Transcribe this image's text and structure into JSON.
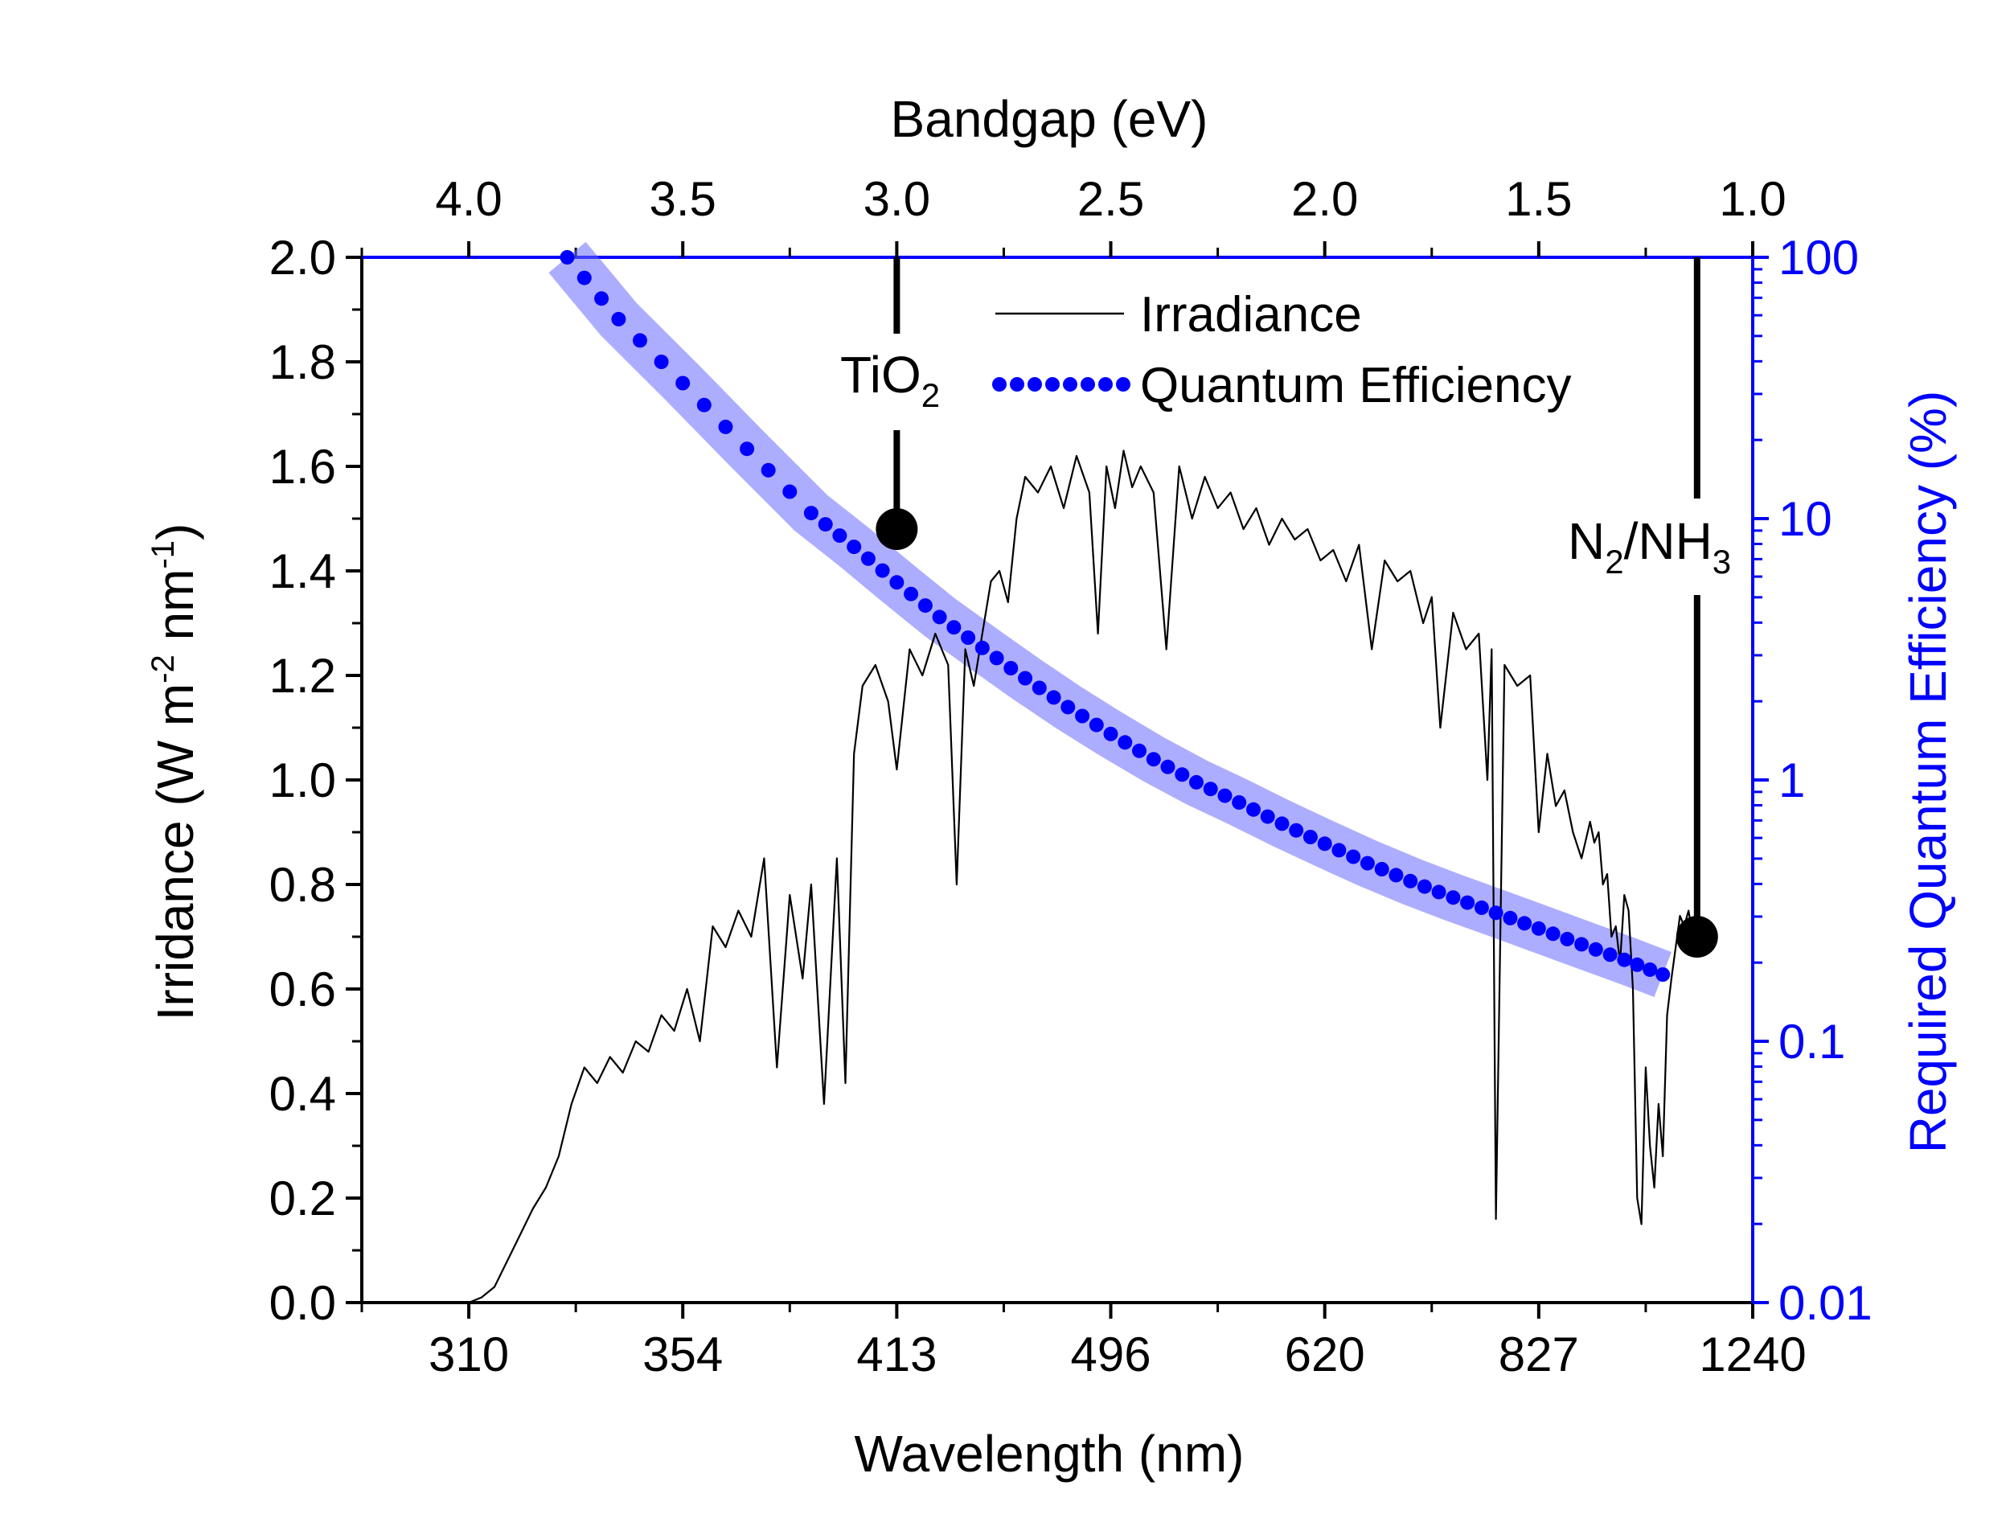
{
  "chart_data": {
    "type": "line",
    "x_axis": {
      "label": "Wavelength (nm)",
      "tick_labels": [
        "310",
        "354",
        "413",
        "496",
        "620",
        "827",
        "1240"
      ],
      "tick_ev": [
        4.0,
        3.5,
        3.0,
        2.5,
        2.0,
        1.5,
        1.0
      ],
      "range_ev": [
        4.25,
        1.0
      ]
    },
    "top_axis": {
      "label": "Bandgap (eV)",
      "tick_labels": [
        "4.0",
        "3.5",
        "3.0",
        "2.5",
        "2.0",
        "1.5",
        "1.0"
      ],
      "ticks": [
        4.0,
        3.5,
        3.0,
        2.5,
        2.0,
        1.5,
        1.0
      ]
    },
    "y_left": {
      "label": "Irridance (W m-2 nm-1)",
      "label_parts": [
        "Irridance (W m",
        "-2",
        " nm",
        "-1",
        ")"
      ],
      "range": [
        0,
        2.0
      ],
      "ticks": [
        0.0,
        0.2,
        0.4,
        0.6,
        0.8,
        1.0,
        1.2,
        1.4,
        1.6,
        1.8,
        2.0
      ],
      "tick_labels": [
        "0.0",
        "0.2",
        "0.4",
        "0.6",
        "0.8",
        "1.0",
        "1.2",
        "1.4",
        "1.6",
        "1.8",
        "2.0"
      ]
    },
    "y_right": {
      "label": "Required Quantum Efficiency (%)",
      "scale": "log",
      "range": [
        0.01,
        100
      ],
      "ticks": [
        0.01,
        0.1,
        1,
        10,
        100
      ],
      "tick_labels": [
        "0.01",
        "0.1",
        "1",
        "10",
        "100"
      ]
    },
    "series": [
      {
        "name": "Irradiance",
        "style": "thin-black-line",
        "x_ev": [
          4.0,
          3.97,
          3.94,
          3.91,
          3.88,
          3.85,
          3.82,
          3.79,
          3.76,
          3.73,
          3.7,
          3.67,
          3.64,
          3.61,
          3.58,
          3.55,
          3.52,
          3.49,
          3.46,
          3.43,
          3.4,
          3.37,
          3.34,
          3.31,
          3.28,
          3.25,
          3.22,
          3.2,
          3.17,
          3.14,
          3.12,
          3.1,
          3.08,
          3.05,
          3.02,
          3.0,
          2.97,
          2.94,
          2.91,
          2.88,
          2.86,
          2.84,
          2.82,
          2.8,
          2.78,
          2.76,
          2.74,
          2.72,
          2.7,
          2.67,
          2.64,
          2.61,
          2.58,
          2.55,
          2.53,
          2.51,
          2.49,
          2.47,
          2.45,
          2.43,
          2.4,
          2.37,
          2.34,
          2.31,
          2.28,
          2.25,
          2.22,
          2.19,
          2.16,
          2.13,
          2.1,
          2.07,
          2.04,
          2.01,
          1.98,
          1.95,
          1.92,
          1.89,
          1.86,
          1.83,
          1.8,
          1.77,
          1.75,
          1.73,
          1.7,
          1.67,
          1.64,
          1.62,
          1.61,
          1.6,
          1.58,
          1.55,
          1.52,
          1.5,
          1.48,
          1.46,
          1.44,
          1.42,
          1.4,
          1.38,
          1.37,
          1.36,
          1.35,
          1.34,
          1.33,
          1.32,
          1.31,
          1.3,
          1.29,
          1.28,
          1.27,
          1.26,
          1.25,
          1.24,
          1.23,
          1.22,
          1.21,
          1.2,
          1.19,
          1.18,
          1.17,
          1.16,
          1.15,
          1.14,
          1.13
        ],
        "y": [
          0.0,
          0.01,
          0.03,
          0.08,
          0.13,
          0.18,
          0.22,
          0.28,
          0.38,
          0.45,
          0.42,
          0.47,
          0.44,
          0.5,
          0.48,
          0.55,
          0.52,
          0.6,
          0.5,
          0.72,
          0.68,
          0.75,
          0.7,
          0.85,
          0.45,
          0.78,
          0.62,
          0.8,
          0.38,
          0.85,
          0.42,
          1.05,
          1.18,
          1.22,
          1.15,
          1.02,
          1.25,
          1.2,
          1.28,
          1.22,
          0.8,
          1.25,
          1.18,
          1.28,
          1.38,
          1.4,
          1.34,
          1.5,
          1.58,
          1.55,
          1.6,
          1.52,
          1.62,
          1.55,
          1.28,
          1.6,
          1.52,
          1.63,
          1.56,
          1.6,
          1.55,
          1.25,
          1.6,
          1.5,
          1.58,
          1.52,
          1.55,
          1.48,
          1.52,
          1.45,
          1.5,
          1.46,
          1.48,
          1.42,
          1.44,
          1.38,
          1.45,
          1.25,
          1.42,
          1.38,
          1.4,
          1.3,
          1.35,
          1.1,
          1.32,
          1.25,
          1.28,
          1.0,
          1.25,
          0.16,
          1.22,
          1.18,
          1.2,
          0.9,
          1.05,
          0.95,
          0.98,
          0.9,
          0.85,
          0.92,
          0.88,
          0.9,
          0.8,
          0.82,
          0.7,
          0.72,
          0.65,
          0.78,
          0.75,
          0.6,
          0.2,
          0.15,
          0.45,
          0.3,
          0.22,
          0.38,
          0.28,
          0.55,
          0.62,
          0.68,
          0.74,
          0.72,
          0.75,
          0.7,
          0.68
        ]
      },
      {
        "name": "Quantum Efficiency",
        "style": "blue-dotted",
        "band": true,
        "x_ev": [
          3.77,
          3.65,
          3.5,
          3.35,
          3.2,
          3.1,
          3.0,
          2.9,
          2.8,
          2.7,
          2.6,
          2.5,
          2.4,
          2.3,
          2.2,
          2.1,
          2.0,
          1.9,
          1.8,
          1.7,
          1.6,
          1.5,
          1.4,
          1.3,
          1.21
        ],
        "values": [
          100,
          58,
          33,
          18.5,
          10.5,
          7.8,
          5.7,
          4.2,
          3.2,
          2.45,
          1.9,
          1.5,
          1.2,
          0.98,
          0.82,
          0.68,
          0.57,
          0.48,
          0.41,
          0.355,
          0.31,
          0.27,
          0.235,
          0.205,
          0.18
        ]
      }
    ],
    "legend": {
      "position": "top-center",
      "items": [
        "Irradiance",
        "Quantum Efficiency"
      ]
    },
    "annotations": [
      {
        "label": "TiO2",
        "base": "TiO",
        "sub": "2",
        "x_ev": 3.0,
        "marker_y": 1.48
      },
      {
        "label": "N2/NH3",
        "parts": [
          "N",
          "2",
          "/NH",
          "3"
        ],
        "x_ev": 1.13,
        "marker_y": 0.7
      }
    ]
  }
}
